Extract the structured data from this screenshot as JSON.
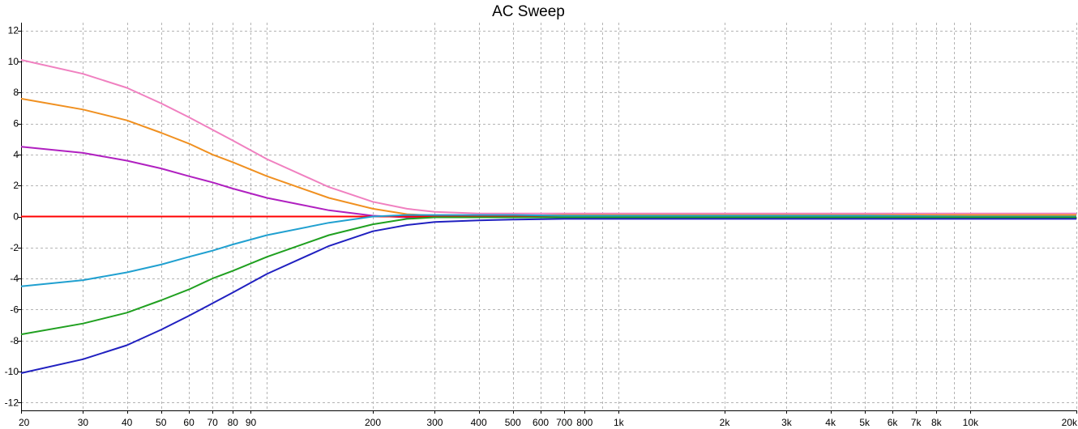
{
  "window": {
    "title": "AC Sweep"
  },
  "chart_data": {
    "type": "line",
    "title": "AC Sweep",
    "xlabel": "",
    "ylabel": "",
    "xscale": "log",
    "xlim": [
      20,
      20000
    ],
    "ylim": [
      -12.5,
      12.5
    ],
    "grid": true,
    "legend": "none",
    "y_ticks": [
      12,
      10,
      8,
      6,
      4,
      2,
      0,
      -2,
      -4,
      -6,
      -8,
      -10,
      -12
    ],
    "x_ticks": [
      {
        "v": 20,
        "label": "20"
      },
      {
        "v": 30,
        "label": "30"
      },
      {
        "v": 40,
        "label": "40"
      },
      {
        "v": 50,
        "label": "50"
      },
      {
        "v": 60,
        "label": "60"
      },
      {
        "v": 70,
        "label": "70"
      },
      {
        "v": 80,
        "label": "80"
      },
      {
        "v": 90,
        "label": "90"
      },
      {
        "v": 200,
        "label": "200"
      },
      {
        "v": 300,
        "label": "300"
      },
      {
        "v": 400,
        "label": "400"
      },
      {
        "v": 500,
        "label": "500"
      },
      {
        "v": 600,
        "label": "600"
      },
      {
        "v": 700,
        "label": "700"
      },
      {
        "v": 800,
        "label": "800"
      },
      {
        "v": 1000,
        "label": "1k"
      },
      {
        "v": 2000,
        "label": "2k"
      },
      {
        "v": 3000,
        "label": "3k"
      },
      {
        "v": 4000,
        "label": "4k"
      },
      {
        "v": 5000,
        "label": "5k"
      },
      {
        "v": 6000,
        "label": "6k"
      },
      {
        "v": 7000,
        "label": "7k"
      },
      {
        "v": 8000,
        "label": "8k"
      },
      {
        "v": 10000,
        "label": "10k"
      },
      {
        "v": 20000,
        "label": "20k"
      }
    ],
    "x_gridlines": [
      20,
      30,
      40,
      50,
      60,
      70,
      80,
      90,
      100,
      200,
      300,
      400,
      500,
      600,
      700,
      800,
      900,
      1000,
      2000,
      3000,
      4000,
      5000,
      6000,
      7000,
      8000,
      9000,
      10000,
      20000
    ],
    "y_gridlines": [
      12,
      10,
      8,
      6,
      4,
      2,
      -2,
      -4,
      -6,
      -8,
      -10,
      -12
    ],
    "x": [
      20,
      30,
      40,
      50,
      60,
      70,
      80,
      100,
      150,
      200,
      250,
      300,
      400,
      500,
      700,
      1000,
      2000,
      5000,
      10000,
      20000
    ],
    "series": [
      {
        "color": "#f080c0",
        "values": [
          10.1,
          9.2,
          8.3,
          7.3,
          6.4,
          5.6,
          4.9,
          3.7,
          1.9,
          0.95,
          0.5,
          0.3,
          0.2,
          0.2,
          0.2,
          0.2,
          0.2,
          0.2,
          0.2,
          0.2
        ]
      },
      {
        "color": "#f09020",
        "values": [
          7.6,
          6.9,
          6.2,
          5.4,
          4.7,
          4.0,
          3.5,
          2.6,
          1.2,
          0.5,
          0.15,
          0.05,
          0.05,
          0.05,
          0.1,
          0.1,
          0.1,
          0.1,
          0.1,
          0.1
        ]
      },
      {
        "color": "#b020c0",
        "values": [
          4.5,
          4.1,
          3.6,
          3.1,
          2.6,
          2.2,
          1.8,
          1.2,
          0.4,
          0.05,
          -0.05,
          -0.05,
          -0.05,
          0.0,
          0.0,
          0.0,
          0.0,
          0.0,
          0.0,
          0.0
        ]
      },
      {
        "color": "#ff0000",
        "values": [
          0,
          0,
          0,
          0,
          0,
          0,
          0,
          0,
          0,
          0,
          0,
          0,
          0,
          0,
          0,
          0,
          0,
          0,
          0,
          0
        ]
      },
      {
        "color": "#20a0d0",
        "values": [
          -4.5,
          -4.1,
          -3.6,
          -3.1,
          -2.6,
          -2.2,
          -1.8,
          -1.2,
          -0.4,
          0.0,
          0.1,
          0.1,
          0.1,
          0.1,
          0.05,
          0.05,
          0.05,
          0.05,
          0.0,
          0.0
        ]
      },
      {
        "color": "#20a020",
        "values": [
          -7.6,
          -6.9,
          -6.2,
          -5.4,
          -4.7,
          -4.0,
          -3.5,
          -2.6,
          -1.2,
          -0.5,
          -0.15,
          -0.05,
          -0.05,
          -0.05,
          -0.05,
          -0.05,
          -0.05,
          -0.05,
          -0.05,
          -0.05
        ]
      },
      {
        "color": "#2020c0",
        "values": [
          -10.1,
          -9.2,
          -8.3,
          -7.3,
          -6.4,
          -5.6,
          -4.9,
          -3.7,
          -1.9,
          -0.95,
          -0.55,
          -0.35,
          -0.25,
          -0.2,
          -0.15,
          -0.15,
          -0.15,
          -0.15,
          -0.15,
          -0.15
        ]
      }
    ]
  }
}
